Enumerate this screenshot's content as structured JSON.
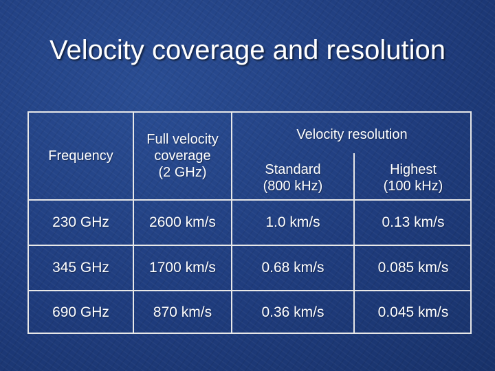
{
  "title": "Velocity coverage and resolution",
  "table": {
    "headers": {
      "frequency": "Frequency",
      "coverage": [
        "Full velocity",
        "coverage",
        "(2 GHz)"
      ],
      "resolution_group": "Velocity resolution",
      "standard": [
        "Standard",
        "(800 kHz)"
      ],
      "highest": [
        "Highest",
        "(100 kHz)"
      ]
    },
    "rows": [
      {
        "frequency": "230 GHz",
        "coverage": "2600 km/s",
        "standard": "1.0 km/s",
        "highest": "0.13 km/s"
      },
      {
        "frequency": "345 GHz",
        "coverage": "1700 km/s",
        "standard": "0.68 km/s",
        "highest": "0.085 km/s"
      },
      {
        "frequency": "690 GHz",
        "coverage": "870 km/s",
        "standard": "0.36 km/s",
        "highest": "0.045 km/s"
      }
    ]
  }
}
